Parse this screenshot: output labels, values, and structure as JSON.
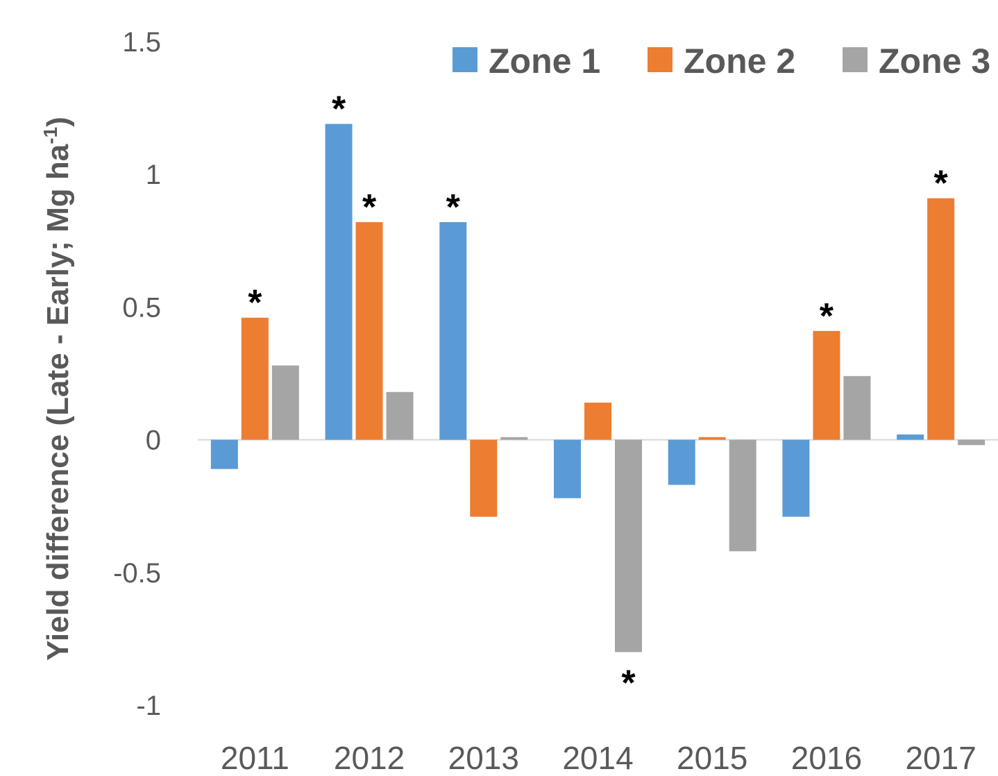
{
  "chart_data": {
    "type": "bar",
    "ylabel": {
      "text": "Yield difference (Late - Early; Mg ha",
      "superscript": "-1",
      "suffix": ")"
    },
    "categories": [
      "2011",
      "2012",
      "2013",
      "2014",
      "2015",
      "2016",
      "2017"
    ],
    "series": [
      {
        "name": "Zone 1",
        "color": "#5b9bd5",
        "values": [
          -0.11,
          1.19,
          0.82,
          -0.22,
          -0.17,
          -0.29,
          0.02
        ],
        "annotations": [
          null,
          "*",
          "*",
          null,
          null,
          null,
          null
        ]
      },
      {
        "name": "Zone 2",
        "color": "#ed7d31",
        "values": [
          0.46,
          0.82,
          -0.29,
          0.14,
          0.01,
          0.41,
          0.91
        ],
        "annotations": [
          "*",
          "*",
          null,
          null,
          null,
          "*",
          "*"
        ]
      },
      {
        "name": "Zone 3",
        "color": "#a5a5a5",
        "values": [
          0.28,
          0.18,
          0.01,
          -0.8,
          -0.42,
          0.24,
          -0.02
        ],
        "annotations": [
          null,
          null,
          null,
          "*",
          null,
          null,
          null
        ]
      }
    ],
    "ylim": [
      -1,
      1.5
    ],
    "yticks": [
      -1,
      -0.5,
      0,
      0.5,
      1,
      1.5
    ],
    "grid": false,
    "legend": "top-right"
  }
}
